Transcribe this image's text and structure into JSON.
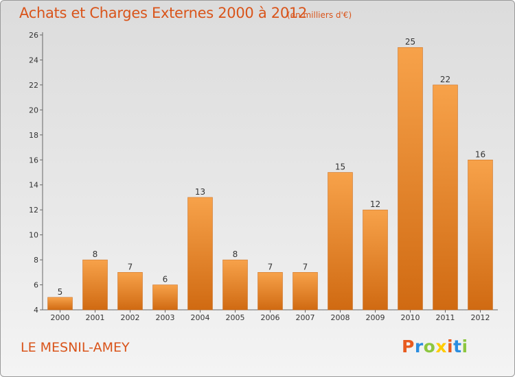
{
  "header": {
    "title": "Achats et Charges Externes 2000 à 2012",
    "subtitle": "(en milliers d'€)"
  },
  "footer": {
    "location": "LE MESNIL-AMEY",
    "logo": "Proxiti"
  },
  "colors": {
    "bar_light": "#f7a24a",
    "bar_dark": "#d06a12",
    "title": "#d9541a"
  },
  "chart_data": {
    "type": "bar",
    "title": "Achats et Charges Externes 2000 à 2012",
    "subtitle": "(en milliers d'€)",
    "categories": [
      "2000",
      "2001",
      "2002",
      "2003",
      "2004",
      "2005",
      "2006",
      "2007",
      "2008",
      "2009",
      "2010",
      "2011",
      "2012"
    ],
    "values": [
      5,
      8,
      7,
      6,
      13,
      8,
      7,
      7,
      15,
      12,
      25,
      22,
      16
    ],
    "ylim": [
      4,
      26
    ],
    "yticks": [
      4,
      6,
      8,
      10,
      12,
      14,
      16,
      18,
      20,
      22,
      24,
      26
    ],
    "grid": false,
    "legend": "none"
  }
}
